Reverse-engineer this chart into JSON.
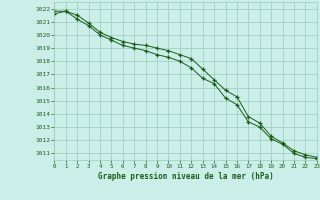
{
  "title": "Graphe pression niveau de la mer (hPa)",
  "background_color": "#cceee8",
  "grid_color": "#99ccbb",
  "line_color": "#1a5c1a",
  "xlim": [
    0,
    23
  ],
  "ylim": [
    1010.5,
    1022.5
  ],
  "yticks": [
    1011,
    1012,
    1013,
    1014,
    1015,
    1016,
    1017,
    1018,
    1019,
    1020,
    1021,
    1022
  ],
  "xticks": [
    0,
    1,
    2,
    3,
    4,
    5,
    6,
    7,
    8,
    9,
    10,
    11,
    12,
    13,
    14,
    15,
    16,
    17,
    18,
    19,
    20,
    21,
    22,
    23
  ],
  "series1_x": [
    0,
    1,
    2,
    3,
    4,
    5,
    6,
    7,
    8,
    9,
    10,
    11,
    12,
    13,
    14,
    15,
    16,
    17,
    18,
    19,
    20,
    21,
    22,
    23
  ],
  "series1_y": [
    1021.8,
    1021.8,
    1021.5,
    1020.9,
    1020.2,
    1019.8,
    1019.5,
    1019.3,
    1019.2,
    1019.0,
    1018.8,
    1018.5,
    1018.2,
    1017.4,
    1016.6,
    1015.8,
    1015.3,
    1013.8,
    1013.3,
    1012.3,
    1011.8,
    1011.2,
    1010.9,
    1010.7
  ],
  "series2_x": [
    0,
    1,
    2,
    3,
    4,
    5,
    6,
    7,
    8,
    9,
    10,
    11,
    12,
    13,
    14,
    15,
    16,
    17,
    18,
    19,
    20,
    21,
    22,
    23
  ],
  "series2_y": [
    1021.6,
    1021.8,
    1021.2,
    1020.7,
    1020.0,
    1019.6,
    1019.2,
    1019.0,
    1018.8,
    1018.5,
    1018.3,
    1018.0,
    1017.5,
    1016.7,
    1016.3,
    1015.2,
    1014.7,
    1013.4,
    1013.0,
    1012.1,
    1011.7,
    1011.0,
    1010.7,
    1010.6
  ]
}
